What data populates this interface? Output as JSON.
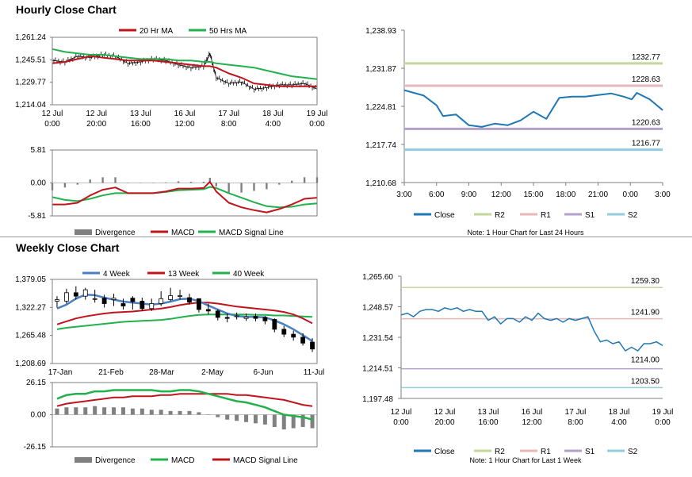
{
  "titles": {
    "hourly": "Hourly Close Chart",
    "weekly": "Weekly Close Chart"
  },
  "chart_data": [
    {
      "id": "hourly_price",
      "type": "line",
      "legend": [
        {
          "name": "20 Hr MA",
          "color": "#c0141c"
        },
        {
          "name": "50 Hrs MA",
          "color": "#22b14c"
        }
      ],
      "yticks": [
        "1,261.24",
        "1,245.51",
        "1,229.77",
        "1,214.04"
      ],
      "ylim": [
        1214.04,
        1261.24
      ],
      "xticks": [
        [
          "12 Jul",
          "0:00"
        ],
        [
          "12 Jul",
          "20:00"
        ],
        [
          "13 Jul",
          "16:00"
        ],
        [
          "16 Jul",
          "12:00"
        ],
        [
          "17 Jul",
          "8:00"
        ],
        [
          "18 Jul",
          "4:00"
        ],
        [
          "19 Jul",
          "0:00"
        ]
      ],
      "x": [
        0,
        8,
        16,
        24,
        32,
        40,
        48,
        56,
        64,
        72,
        80,
        88,
        96,
        100,
        104,
        112,
        120,
        128,
        136,
        144,
        152,
        160,
        168
      ],
      "close": [
        1245,
        1244,
        1248,
        1247,
        1249,
        1248,
        1243,
        1244,
        1246,
        1245,
        1242,
        1240,
        1241,
        1250,
        1233,
        1229,
        1230,
        1225,
        1226,
        1228,
        1228,
        1229,
        1225
      ],
      "ma20": [
        1243,
        1244,
        1246,
        1248,
        1247,
        1246,
        1245,
        1245,
        1245,
        1244,
        1243,
        1242,
        1241,
        1241,
        1240,
        1236,
        1233,
        1229,
        1228,
        1227,
        1227,
        1227,
        1227
      ],
      "ma50": [
        1253,
        1251,
        1250,
        1249,
        1249,
        1248,
        1247,
        1246,
        1246,
        1246,
        1245,
        1245,
        1244,
        1244,
        1243,
        1242,
        1241,
        1240,
        1238,
        1236,
        1234,
        1233,
        1232
      ]
    },
    {
      "id": "hourly_macd",
      "type": "bar",
      "legend": [
        {
          "name": "Divergence",
          "color": "#808080"
        },
        {
          "name": "MACD",
          "color": "#c0141c"
        },
        {
          "name": "MACD Signal Line",
          "color": "#22b14c"
        }
      ],
      "yticks": [
        "5.81",
        "0.00",
        "-5.81"
      ],
      "ylim": [
        -5.81,
        5.81
      ],
      "x": [
        0,
        8,
        16,
        24,
        32,
        40,
        48,
        56,
        64,
        72,
        80,
        88,
        96,
        100,
        104,
        112,
        120,
        128,
        136,
        144,
        152,
        160,
        168
      ],
      "macd": [
        -3.8,
        -3.8,
        -3.5,
        -2.2,
        -1.2,
        -0.8,
        -1.8,
        -1.8,
        -1.8,
        -1.5,
        -1.0,
        -1.0,
        -0.9,
        0.2,
        -1.5,
        -3.5,
        -4.3,
        -4.8,
        -5.2,
        -4.6,
        -3.8,
        -2.8,
        -2.6
      ],
      "signal": [
        -2.5,
        -3.0,
        -3.2,
        -2.8,
        -2.2,
        -1.8,
        -1.8,
        -1.8,
        -1.8,
        -1.6,
        -1.3,
        -1.2,
        -1.1,
        -0.7,
        -0.9,
        -1.8,
        -2.6,
        -3.4,
        -4.1,
        -4.3,
        -4.2,
        -3.8,
        -3.6
      ],
      "divergence": [
        -1.3,
        -0.8,
        -0.3,
        0.6,
        1.0,
        1.0,
        0.0,
        0.0,
        0.0,
        0.1,
        0.3,
        0.2,
        0.2,
        0.9,
        -0.6,
        -1.7,
        -1.7,
        -1.4,
        -1.1,
        -0.3,
        0.4,
        1.0,
        1.0
      ]
    },
    {
      "id": "hourly_24h",
      "type": "line",
      "yticks": [
        "1,238.93",
        "1,231.87",
        "1,224.81",
        "1,217.74",
        "1,210.68"
      ],
      "ylim": [
        1210.68,
        1238.93
      ],
      "xticks": [
        "3:00",
        "6:00",
        "9:00",
        "12:00",
        "15:00",
        "18:00",
        "21:00",
        "0:00",
        "3:00"
      ],
      "x": [
        0,
        1.5,
        2.5,
        3,
        4,
        5,
        6,
        7,
        8,
        9,
        10,
        11,
        12,
        13,
        14,
        15,
        16,
        17,
        17.6,
        18,
        19,
        20
      ],
      "close": [
        1227.8,
        1226.8,
        1225.0,
        1223.0,
        1223.3,
        1221.3,
        1221.0,
        1221.6,
        1221.3,
        1222.2,
        1223.8,
        1222.5,
        1226.4,
        1226.6,
        1226.6,
        1226.9,
        1227.2,
        1226.6,
        1226.1,
        1227.3,
        1226.1,
        1224.1
      ],
      "levels": [
        {
          "name": "R2",
          "value": 1232.77,
          "label": "1232.77",
          "color": "#c3d69b"
        },
        {
          "name": "R1",
          "value": 1228.63,
          "label": "1228.63",
          "color": "#e6b9b8"
        },
        {
          "name": "S1",
          "value": 1220.63,
          "label": "1220.63",
          "color": "#b3a2c7"
        },
        {
          "name": "S2",
          "value": 1216.77,
          "label": "1216.77",
          "color": "#93cddd"
        }
      ],
      "legend": [
        {
          "name": "Close",
          "color": "#1f77b4"
        },
        {
          "name": "R2",
          "color": "#c3d69b"
        },
        {
          "name": "R1",
          "color": "#e6b9b8"
        },
        {
          "name": "S1",
          "color": "#b3a2c7"
        },
        {
          "name": "S2",
          "color": "#93cddd"
        }
      ],
      "note": "Note: 1 Hour Chart for Last 24 Hours"
    },
    {
      "id": "weekly_price",
      "type": "line",
      "legend": [
        {
          "name": "4 Week",
          "color": "#4a7fc1"
        },
        {
          "name": "13 Week",
          "color": "#c0141c"
        },
        {
          "name": "40 Week",
          "color": "#22b14c"
        }
      ],
      "yticks": [
        "1,379.05",
        "1,322.27",
        "1,265.48",
        "1,208.69"
      ],
      "ylim": [
        1208.69,
        1379.05
      ],
      "xticks": [
        "17-Jan",
        "21-Feb",
        "28-Mar",
        "2-May",
        "6-Jun",
        "11-Jul"
      ],
      "x": [
        0,
        1,
        2,
        3,
        4,
        5,
        6,
        7,
        8,
        9,
        10,
        11,
        12,
        13,
        14,
        15,
        16,
        17,
        18,
        19,
        20,
        21,
        22,
        23,
        24,
        25,
        26,
        27
      ],
      "open": [
        1335,
        1335,
        1352,
        1345,
        1340,
        1341,
        1338,
        1330,
        1341,
        1335,
        1320,
        1330,
        1338,
        1345,
        1342,
        1340,
        1318,
        1315,
        1302,
        1305,
        1300,
        1304,
        1302,
        1298,
        1278,
        1268,
        1262,
        1252
      ],
      "close": [
        1338,
        1352,
        1345,
        1358,
        1340,
        1330,
        1341,
        1325,
        1334,
        1320,
        1330,
        1340,
        1346,
        1346,
        1333,
        1318,
        1315,
        1302,
        1300,
        1305,
        1303,
        1300,
        1295,
        1278,
        1268,
        1262,
        1250,
        1238
      ],
      "high": [
        1345,
        1360,
        1365,
        1362,
        1358,
        1348,
        1350,
        1340,
        1345,
        1342,
        1340,
        1355,
        1362,
        1358,
        1350,
        1340,
        1330,
        1318,
        1310,
        1312,
        1310,
        1310,
        1305,
        1300,
        1285,
        1275,
        1270,
        1260
      ],
      "low": [
        1322,
        1330,
        1338,
        1338,
        1332,
        1322,
        1325,
        1318,
        1318,
        1315,
        1315,
        1325,
        1335,
        1338,
        1328,
        1312,
        1308,
        1296,
        1292,
        1298,
        1295,
        1294,
        1288,
        1272,
        1262,
        1255,
        1245,
        1232
      ],
      "ma4": [
        1320,
        1328,
        1340,
        1348,
        1347,
        1342,
        1338,
        1334,
        1332,
        1330,
        1328,
        1330,
        1334,
        1339,
        1340,
        1335,
        1326,
        1318,
        1310,
        1305,
        1303,
        1303,
        1302,
        1296,
        1288,
        1278,
        1266,
        1254
      ],
      "ma13": [
        1288,
        1294,
        1300,
        1304,
        1307,
        1310,
        1312,
        1313,
        1314,
        1316,
        1318,
        1320,
        1323,
        1327,
        1330,
        1332,
        1332,
        1330,
        1327,
        1324,
        1322,
        1320,
        1318,
        1316,
        1313,
        1308,
        1300,
        1290
      ],
      "ma40": [
        1278,
        1281,
        1283,
        1285,
        1287,
        1289,
        1291,
        1293,
        1294,
        1295,
        1296,
        1297,
        1299,
        1302,
        1305,
        1307,
        1308,
        1308,
        1308,
        1308,
        1308,
        1307,
        1307,
        1306,
        1306,
        1305,
        1304,
        1303
      ]
    },
    {
      "id": "weekly_macd",
      "type": "bar",
      "legend": [
        {
          "name": "Divergence",
          "color": "#808080"
        },
        {
          "name": "MACD",
          "color": "#22b14c"
        },
        {
          "name": "MACD Signal Line",
          "color": "#c0141c"
        }
      ],
      "yticks": [
        "26.15",
        "0.00",
        "-26.15"
      ],
      "ylim": [
        -26.15,
        26.15
      ],
      "x": [
        0,
        1,
        2,
        3,
        4,
        5,
        6,
        7,
        8,
        9,
        10,
        11,
        12,
        13,
        14,
        15,
        16,
        17,
        18,
        19,
        20,
        21,
        22,
        23,
        24,
        25,
        26,
        27
      ],
      "macd": [
        13,
        16,
        17,
        17,
        19,
        19,
        20,
        20,
        20,
        20,
        20,
        19,
        19,
        20,
        20,
        19,
        17,
        15,
        13,
        11,
        10,
        8,
        6,
        3,
        0,
        -1,
        -2,
        -4
      ],
      "signal": [
        7,
        9,
        10,
        11,
        12,
        13,
        14,
        14,
        15,
        15,
        15,
        16,
        16,
        17,
        17,
        17,
        17,
        17,
        17,
        16,
        16,
        15,
        14,
        13,
        12,
        10,
        8,
        7
      ],
      "divergence": [
        5,
        6,
        6,
        6,
        7,
        6,
        6,
        6,
        5,
        5,
        4,
        4,
        3,
        3,
        3,
        2,
        0,
        -2,
        -4,
        -5,
        -6,
        -7,
        -8,
        -10,
        -12,
        -11,
        -10,
        -11
      ]
    },
    {
      "id": "weekly_1w",
      "type": "line",
      "yticks": [
        "1,265.60",
        "1,248.57",
        "1,231.54",
        "1,214.51",
        "1,197.48"
      ],
      "ylim": [
        1197.48,
        1265.6
      ],
      "xticks": [
        [
          "12 Jul",
          "0:00"
        ],
        [
          "12 Jul",
          "20:00"
        ],
        [
          "13 Jul",
          "16:00"
        ],
        [
          "16 Jul",
          "12:00"
        ],
        [
          "17 Jul",
          "8:00"
        ],
        [
          "18 Jul",
          "4:00"
        ],
        [
          "19 Jul",
          "0:00"
        ]
      ],
      "x": [
        0,
        4,
        8,
        12,
        16,
        20,
        24,
        28,
        32,
        36,
        40,
        44,
        48,
        52,
        56,
        60,
        64,
        68,
        72,
        76,
        80,
        84,
        88,
        92,
        96,
        100,
        104,
        108,
        112,
        116,
        120,
        124,
        128,
        132,
        136,
        140,
        144,
        148,
        152,
        156,
        160,
        164,
        168
      ],
      "close": [
        1244,
        1245,
        1243,
        1246,
        1247,
        1247,
        1246,
        1248,
        1247,
        1248,
        1246,
        1247,
        1246,
        1246,
        1241,
        1243,
        1239,
        1242,
        1242,
        1240,
        1243,
        1241,
        1245,
        1242,
        1241,
        1242,
        1240,
        1242,
        1241,
        1242,
        1243,
        1235,
        1229,
        1230,
        1228,
        1229,
        1224,
        1226,
        1224,
        1228,
        1228,
        1229,
        1227
      ],
      "levels": [
        {
          "name": "R2",
          "value": 1259.3,
          "label": "1259.30",
          "color": "#c3d69b"
        },
        {
          "name": "R1",
          "value": 1241.9,
          "label": "1241.90",
          "color": "#e6b9b8"
        },
        {
          "name": "S1",
          "value": 1214.0,
          "label": "1214.00",
          "color": "#b3a2c7"
        },
        {
          "name": "S2",
          "value": 1203.5,
          "label": "1203.50",
          "color": "#93cddd"
        }
      ],
      "legend": [
        {
          "name": "Close",
          "color": "#1f77b4"
        },
        {
          "name": "R2",
          "color": "#c3d69b"
        },
        {
          "name": "R1",
          "color": "#e6b9b8"
        },
        {
          "name": "S1",
          "color": "#b3a2c7"
        },
        {
          "name": "S2",
          "color": "#93cddd"
        }
      ],
      "note": "Note: 1 Hour Chart for Last 1 Week"
    }
  ]
}
